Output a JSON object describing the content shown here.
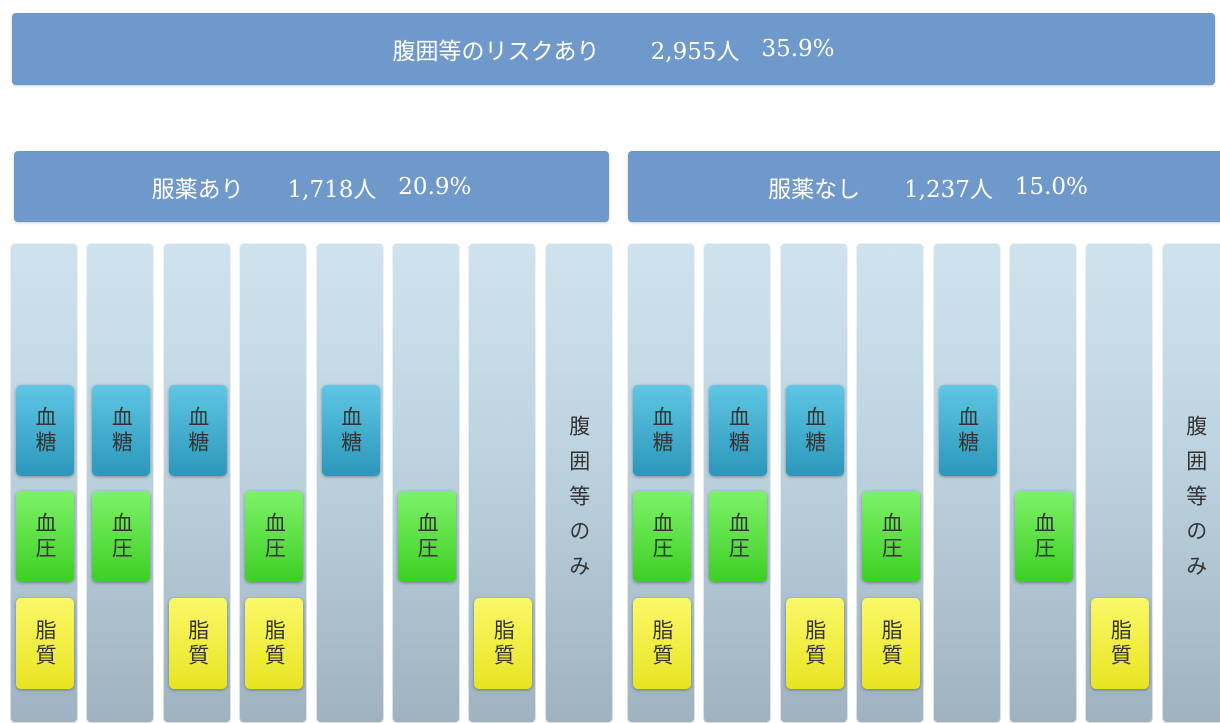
{
  "header": {
    "label": "腹囲等のリスクあり",
    "count": "2,955人",
    "percent": "35.9%"
  },
  "groups": [
    {
      "label": "服薬あり",
      "count": "1,718人",
      "percent": "20.9%",
      "columns": [
        {
          "items": [
            "血糖",
            "血圧",
            "脂質"
          ]
        },
        {
          "items": [
            "血糖",
            "血圧",
            null
          ]
        },
        {
          "items": [
            "血糖",
            null,
            "脂質"
          ]
        },
        {
          "items": [
            null,
            "血圧",
            "脂質"
          ]
        },
        {
          "items": [
            "血糖",
            null,
            null
          ]
        },
        {
          "items": [
            null,
            "血圧",
            null
          ]
        },
        {
          "items": [
            null,
            null,
            "脂質"
          ]
        },
        {
          "text": "腹囲等のみ"
        }
      ]
    },
    {
      "label": "服薬なし",
      "count": "1,237人",
      "percent": "15.0%",
      "columns": [
        {
          "items": [
            "血糖",
            "血圧",
            "脂質"
          ]
        },
        {
          "items": [
            "血糖",
            "血圧",
            null
          ]
        },
        {
          "items": [
            "血糖",
            null,
            "脂質"
          ]
        },
        {
          "items": [
            null,
            "血圧",
            "脂質"
          ]
        },
        {
          "items": [
            "血糖",
            null,
            null
          ]
        },
        {
          "items": [
            null,
            "血圧",
            null
          ]
        },
        {
          "items": [
            null,
            null,
            "脂質"
          ]
        },
        {
          "text": "腹囲等のみ"
        }
      ]
    }
  ]
}
